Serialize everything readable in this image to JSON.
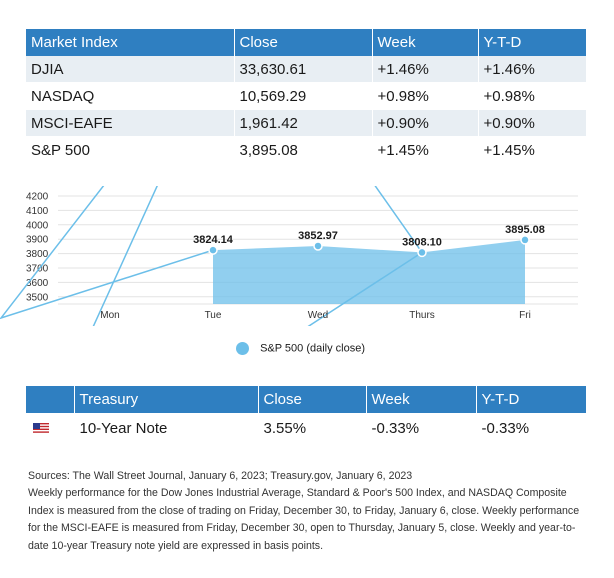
{
  "market_table": {
    "headers": [
      "Market Index",
      "Close",
      "Week",
      "Y-T-D"
    ],
    "rows": [
      [
        "DJIA",
        "33,630.61",
        "+1.46%",
        "+1.46%"
      ],
      [
        "NASDAQ",
        "10,569.29",
        "+0.98%",
        "+0.98%"
      ],
      [
        "MSCI-EAFE",
        "1,961.42",
        "+0.90%",
        "+0.90%"
      ],
      [
        "S&P 500",
        "3,895.08",
        "+1.45%",
        "+1.45%"
      ]
    ]
  },
  "chart_data": {
    "type": "area",
    "categories": [
      "Mon",
      "Tue",
      "Wed",
      "Thurs",
      "Fri"
    ],
    "series": [
      {
        "name": "S&P 500 (daily close)",
        "values": [
          null,
          3824.14,
          3852.97,
          3808.1,
          3895.08
        ],
        "labels": [
          "",
          "3824.14",
          "3852.97",
          "3808.10",
          "3895.08"
        ]
      }
    ],
    "yticks": [
      3500,
      3600,
      3700,
      3800,
      3900,
      4000,
      4100,
      4200
    ],
    "ylim": [
      3450,
      4200
    ],
    "grid": true,
    "legend_position": "bottom",
    "color": "#6cbfe9"
  },
  "treasury_table": {
    "headers": [
      "",
      "Treasury",
      "Close",
      "Week",
      "Y-T-D"
    ],
    "rows": [
      [
        "us-flag-icon",
        "10-Year Note",
        "3.55%",
        "-0.33%",
        "-0.33%"
      ]
    ]
  },
  "notes": [
    "Sources: The Wall Street Journal, January 6, 2023; Treasury.gov, January 6, 2023",
    "Weekly performance for the Dow Jones Industrial Average, Standard & Poor's 500 Index, and NASDAQ Composite Index is measured from the close of trading on Friday, December 30, to Friday, January 6, close. Weekly performance for the MSCI-EAFE is measured from Friday, December 30, open to Thursday, January 5, close. Weekly and year-to-date 10-year Treasury note yield are expressed in basis points."
  ]
}
